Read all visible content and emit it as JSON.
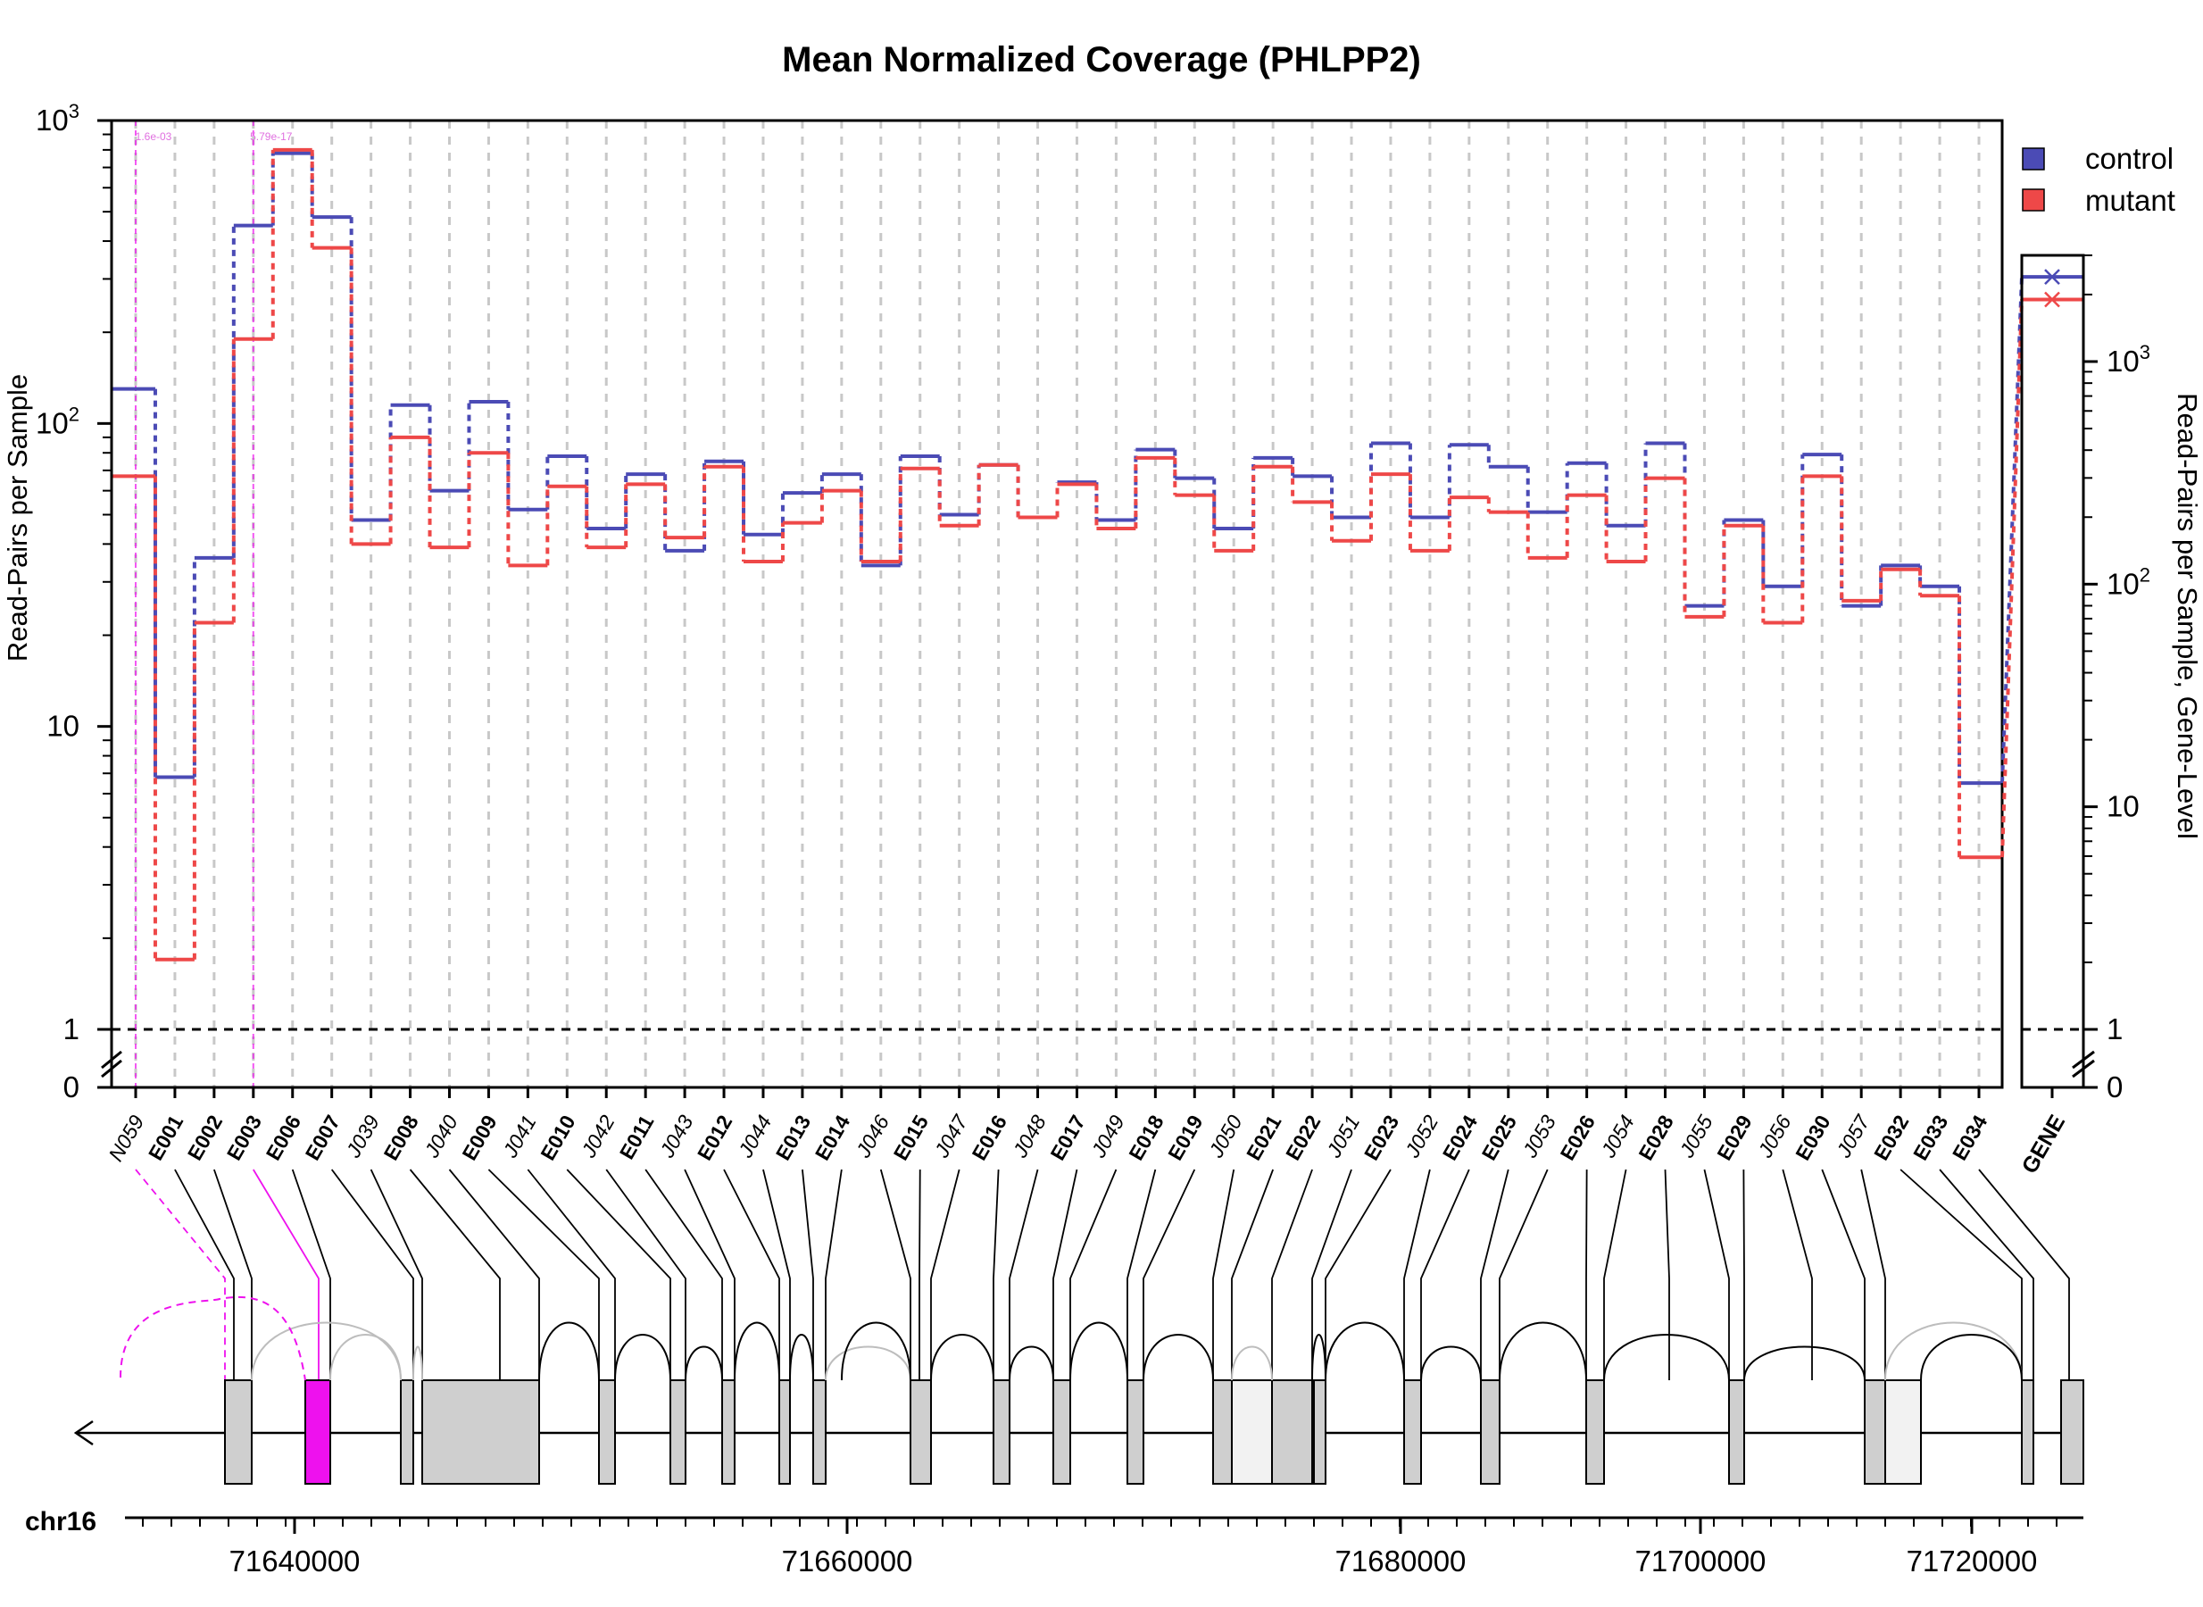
{
  "chart_data": {
    "type": "line",
    "title": "Mean Normalized Coverage (PHLPP2)",
    "ylabel": "Read-Pairs per Sample",
    "ylabel_right": "Read-Pairs per Sample, Gene-Level",
    "yscale": "log",
    "yticks": [
      "1",
      "10",
      "10^2",
      "10^3"
    ],
    "yticks_zero_label": "0",
    "ylim": [
      1,
      1000
    ],
    "ylim_gene": [
      1,
      3000
    ],
    "gene_yticks": [
      "1",
      "10",
      "10^2",
      "10^3"
    ],
    "gene_zero_label": "0",
    "gene_label": "GENE",
    "features": [
      "N059",
      "E001",
      "E002",
      "E003",
      "E006",
      "E007",
      "J039",
      "E008",
      "J040",
      "E009",
      "J041",
      "E010",
      "J042",
      "E011",
      "J043",
      "E012",
      "J044",
      "E013",
      "E014",
      "J046",
      "E015",
      "J047",
      "E016",
      "J048",
      "E017",
      "J049",
      "E018",
      "E019",
      "J050",
      "E021",
      "E022",
      "J051",
      "E023",
      "J052",
      "E024",
      "E025",
      "J053",
      "E026",
      "J054",
      "E028",
      "J055",
      "E029",
      "J056",
      "E030",
      "J057",
      "E032",
      "E033",
      "E034"
    ],
    "italic_features": [
      "N059",
      "J039",
      "J040",
      "J041",
      "J042",
      "J043",
      "J044",
      "J046",
      "J047",
      "J048",
      "J049",
      "J050",
      "J051",
      "J052",
      "J053",
      "J054",
      "J055",
      "J056",
      "J057"
    ],
    "series": [
      {
        "name": "control",
        "color": "#4b4bb5",
        "values": [
          130,
          6.8,
          36,
          450,
          780,
          480,
          48,
          115,
          60,
          118,
          52,
          78,
          45,
          68,
          38,
          75,
          43,
          59,
          68,
          34,
          78,
          50,
          73,
          49,
          64,
          48,
          82,
          66,
          45,
          77,
          67,
          49,
          86,
          49,
          85,
          72,
          51,
          74,
          46,
          86,
          25,
          48,
          29,
          79,
          25,
          34,
          29,
          6.5
        ]
      },
      {
        "name": "mutant",
        "color": "#ee4848",
        "values": [
          67,
          1.7,
          22,
          190,
          800,
          380,
          40,
          90,
          39,
          80,
          34,
          62,
          39,
          63,
          42,
          72,
          35,
          47,
          60,
          35,
          71,
          46,
          73,
          49,
          63,
          45,
          77,
          58,
          38,
          72,
          55,
          41,
          68,
          38,
          57,
          51,
          36,
          58,
          35,
          66,
          23,
          46,
          22,
          67,
          26,
          33,
          27,
          3.7
        ]
      }
    ],
    "gene_values": {
      "control": 2400,
      "mutant": 1900
    },
    "significance": [
      {
        "feature": "N059",
        "label": "1.6e-03"
      },
      {
        "feature": "E003",
        "label": "5.79e-17"
      }
    ],
    "genomic_axis": {
      "chrom": "chr16",
      "ticks": [
        "71640000",
        "71660000",
        "71680000",
        "71700000",
        "71720000"
      ]
    },
    "legend": {
      "position": "top-right"
    },
    "grid": "vertical dashed per feature",
    "colors": {
      "highlight": "#ee11ee",
      "exon": "#cfcfcf"
    }
  }
}
